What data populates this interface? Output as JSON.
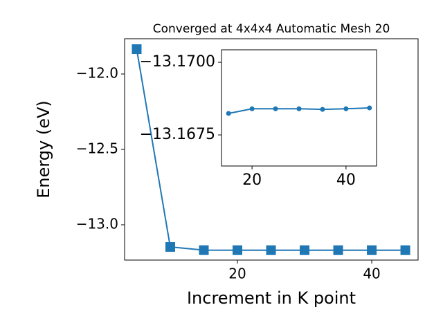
{
  "chart_data": [
    {
      "type": "line",
      "title": "Converged at 4x4x4 Automatic Mesh 20",
      "x_label": "Increment in K point",
      "y_label": "Energy (eV)",
      "x": [
        5,
        10,
        15,
        20,
        25,
        30,
        35,
        40,
        45
      ],
      "series": [
        {
          "color": "#1f77b4",
          "marker": "square",
          "values": [
            -11.835,
            -13.147,
            -13.16824,
            -13.1684,
            -13.1684,
            -13.1684,
            -13.16838,
            -13.1684,
            -13.16843
          ]
        }
      ],
      "xlim": [
        3.2,
        46.9
      ],
      "ylim": [
        -13.234,
        -11.766
      ],
      "xticks": [
        20,
        40
      ],
      "yticks": [
        {
          "value": -13.0,
          "label": "−13.0"
        },
        {
          "value": -12.5,
          "label": "−12.5"
        },
        {
          "value": -12.0,
          "label": "−12.0"
        }
      ]
    },
    {
      "type": "line",
      "x": [
        15,
        20,
        25,
        30,
        35,
        40,
        45
      ],
      "series": [
        {
          "color": "#1f77b4",
          "marker": "circle",
          "values": [
            -13.16824,
            -13.1684,
            -13.1684,
            -13.1684,
            -13.16838,
            -13.1684,
            -13.16843
          ]
        }
      ],
      "xlim": [
        13.5,
        46.5
      ],
      "ylim": [
        -13.16643,
        -13.17043
      ],
      "xticks": [
        20,
        40
      ],
      "yticks": [
        {
          "value": -13.1675,
          "label": "−13.1675"
        },
        {
          "value": -13.17,
          "label": "−13.1700"
        }
      ]
    }
  ]
}
